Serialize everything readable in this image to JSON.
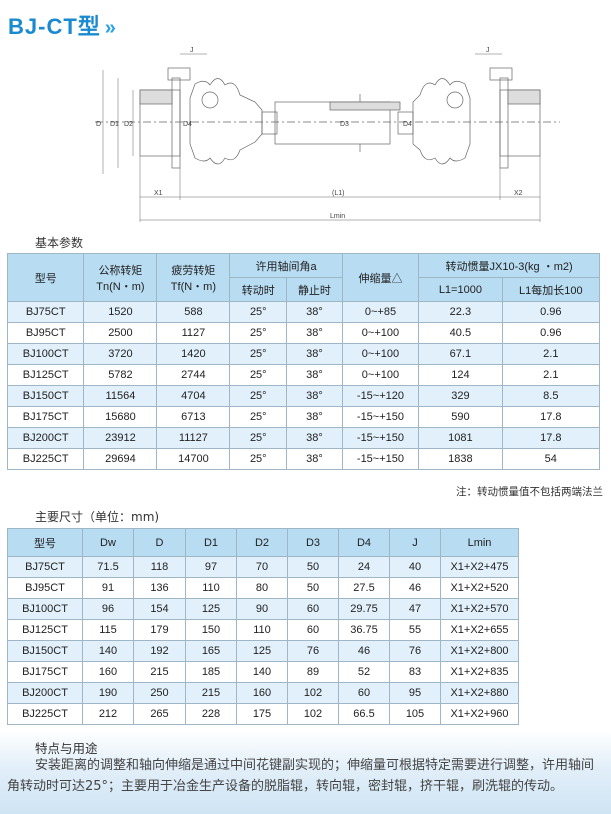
{
  "title": "BJ-CT型",
  "title_chevron": "»",
  "drawing": {
    "labels": {
      "J_left": "J",
      "J_right": "J",
      "D": "D",
      "D1": "D1",
      "D2": "D2",
      "D4": "D4",
      "D3": "D3",
      "D4b": "D4",
      "X1": "X1",
      "L1": "(L1)",
      "X2": "X2",
      "Lmin": "Lmin"
    }
  },
  "basic": {
    "heading": "基本参数",
    "headers": {
      "model": "型号",
      "tn": "公称转矩",
      "tn_unit": "Tn(N・m)",
      "tf": "疲劳转矩",
      "tf_unit": "Tf(N・m)",
      "angle": "许用轴间角a",
      "angle_run": "转动时",
      "angle_still": "静止时",
      "stretch": "伸缩量△",
      "inertia": "转动惯量JX10-3(kg ・m2)",
      "l1": "L1=1000",
      "l1_add": "L1每加长100"
    },
    "rows": [
      [
        "BJ75CT",
        "1520",
        "588",
        "25°",
        "38°",
        "0~+85",
        "22.3",
        "0.96"
      ],
      [
        "BJ95CT",
        "2500",
        "1127",
        "25°",
        "38°",
        "0~+100",
        "40.5",
        "0.96"
      ],
      [
        "BJ100CT",
        "3720",
        "1420",
        "25°",
        "38°",
        "0~+100",
        "67.1",
        "2.1"
      ],
      [
        "BJ125CT",
        "5782",
        "2744",
        "25°",
        "38°",
        "0~+100",
        "124",
        "2.1"
      ],
      [
        "BJ150CT",
        "11564",
        "4704",
        "25°",
        "38°",
        "-15~+120",
        "329",
        "8.5"
      ],
      [
        "BJ175CT",
        "15680",
        "6713",
        "25°",
        "38°",
        "-15~+150",
        "590",
        "17.8"
      ],
      [
        "BJ200CT",
        "23912",
        "11127",
        "25°",
        "38°",
        "-15~+150",
        "1081",
        "17.8"
      ],
      [
        "BJ225CT",
        "29694",
        "14700",
        "25°",
        "38°",
        "-15~+150",
        "1838",
        "54"
      ]
    ],
    "note": "注：转动惯量值不包括两端法兰"
  },
  "dims": {
    "heading": "主要尺寸（单位：mm)",
    "headers": [
      "型号",
      "Dw",
      "D",
      "D1",
      "D2",
      "D3",
      "D4",
      "J",
      "Lmin"
    ],
    "rows": [
      [
        "BJ75CT",
        "71.5",
        "118",
        "97",
        "70",
        "50",
        "24",
        "40",
        "X1+X2+475"
      ],
      [
        "BJ95CT",
        "91",
        "136",
        "110",
        "80",
        "50",
        "27.5",
        "46",
        "X1+X2+520"
      ],
      [
        "BJ100CT",
        "96",
        "154",
        "125",
        "90",
        "60",
        "29.75",
        "47",
        "X1+X2+570"
      ],
      [
        "BJ125CT",
        "115",
        "179",
        "150",
        "110",
        "60",
        "36.75",
        "55",
        "X1+X2+655"
      ],
      [
        "BJ150CT",
        "140",
        "192",
        "165",
        "125",
        "76",
        "46",
        "76",
        "X1+X2+800"
      ],
      [
        "BJ175CT",
        "160",
        "215",
        "185",
        "140",
        "89",
        "52",
        "83",
        "X1+X2+835"
      ],
      [
        "BJ200CT",
        "190",
        "250",
        "215",
        "160",
        "102",
        "60",
        "95",
        "X1+X2+880"
      ],
      [
        "BJ225CT",
        "212",
        "265",
        "228",
        "175",
        "102",
        "66.5",
        "105",
        "X1+X2+960"
      ]
    ]
  },
  "features": {
    "heading": "特点与用途",
    "text": "安装距离的调整和轴向伸缩是通过中间花键副实现的；伸缩量可根据特定需要进行调整，许用轴间角转动时可达25°；主要用于冶金生产设备的脱脂辊，转向辊，密封辊，挤干辊，刷洗辊的传动。"
  }
}
